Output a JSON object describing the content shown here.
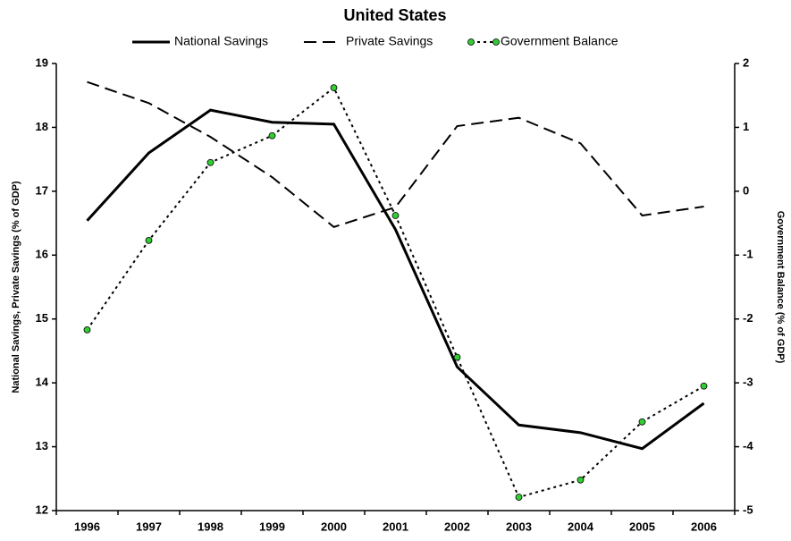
{
  "chart_data": {
    "type": "line",
    "title": "United States",
    "ylabel": "National Savings, Private Savings (% of GDP)",
    "y2label": "Government Balance (% of GDP)",
    "categories": [
      "1996",
      "1997",
      "1998",
      "1999",
      "2000",
      "2001",
      "2002",
      "2003",
      "2004",
      "2005",
      "2006"
    ],
    "series": [
      {
        "name": "National Savings",
        "color": "#000000",
        "dash": "solid",
        "values": [
          16.54,
          17.6,
          18.27,
          18.08,
          18.05,
          16.4,
          14.25,
          13.34,
          13.22,
          12.97,
          13.68
        ]
      },
      {
        "name": "Private Savings",
        "color": "#000000",
        "dash": "dashed",
        "values": [
          18.71,
          18.38,
          17.85,
          17.22,
          16.44,
          16.75,
          18.02,
          18.15,
          17.75,
          16.62,
          16.76
        ]
      },
      {
        "name": "Government Balance",
        "color": "#000000",
        "dash": "dotted",
        "marker_color": "#33cc33",
        "axis": "y2",
        "values": [
          -2.17,
          -0.77,
          0.45,
          0.87,
          1.62,
          -0.38,
          -2.6,
          -4.79,
          -4.52,
          -3.61,
          -3.05
        ]
      }
    ],
    "ylim": [
      12,
      19
    ],
    "yticks": [
      12,
      13,
      14,
      15,
      16,
      17,
      18,
      19
    ],
    "y2lim": [
      -5,
      2
    ],
    "y2ticks": [
      -5,
      -4,
      -3,
      -2,
      -1,
      0,
      1,
      2
    ],
    "grid": false,
    "legend": "top"
  }
}
